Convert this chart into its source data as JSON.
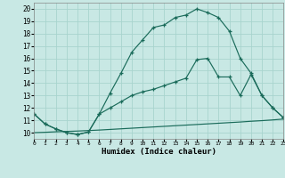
{
  "xlabel": "Humidex (Indice chaleur)",
  "background_color": "#c8e8e4",
  "grid_color": "#a8d4ce",
  "line_color": "#1a6b5a",
  "xlim": [
    0,
    23
  ],
  "ylim": [
    9.5,
    20.5
  ],
  "xticks": [
    0,
    1,
    2,
    3,
    4,
    5,
    6,
    7,
    8,
    9,
    10,
    11,
    12,
    13,
    14,
    15,
    16,
    17,
    18,
    19,
    20,
    21,
    22,
    23
  ],
  "yticks": [
    10,
    11,
    12,
    13,
    14,
    15,
    16,
    17,
    18,
    19,
    20
  ],
  "curve1_x": [
    0,
    1,
    2,
    3,
    4,
    5,
    6,
    7,
    8,
    9,
    10,
    11,
    12,
    13,
    14,
    15,
    16,
    17,
    18,
    19,
    20,
    21,
    22,
    23
  ],
  "curve1_y": [
    11.5,
    10.7,
    10.3,
    10.0,
    9.85,
    10.05,
    11.5,
    13.2,
    14.8,
    16.5,
    17.5,
    18.5,
    18.7,
    19.3,
    19.5,
    20.0,
    19.7,
    19.3,
    18.2,
    16.0,
    14.8,
    13.0,
    12.0,
    11.2
  ],
  "curve2_x": [
    0,
    1,
    2,
    3,
    4,
    5,
    6,
    7,
    8,
    9,
    10,
    11,
    12,
    13,
    14,
    15,
    16,
    17,
    18,
    19,
    20,
    21,
    22,
    23
  ],
  "curve2_y": [
    11.5,
    10.7,
    10.3,
    10.0,
    9.85,
    10.05,
    11.5,
    12.0,
    12.5,
    13.0,
    13.3,
    13.5,
    13.8,
    14.1,
    14.4,
    15.9,
    16.0,
    14.5,
    14.5,
    13.0,
    14.7,
    13.0,
    12.0,
    11.2
  ],
  "curve3_x": [
    0,
    1,
    2,
    3,
    4,
    5,
    6,
    7,
    8,
    9,
    10,
    11,
    12,
    13,
    14,
    15,
    16,
    17,
    18,
    19,
    20,
    21,
    22,
    23
  ],
  "curve3_y": [
    10.0,
    10.03,
    10.07,
    10.1,
    10.13,
    10.17,
    10.21,
    10.26,
    10.31,
    10.36,
    10.41,
    10.46,
    10.51,
    10.56,
    10.61,
    10.66,
    10.71,
    10.76,
    10.81,
    10.86,
    10.92,
    10.97,
    11.03,
    11.1
  ]
}
